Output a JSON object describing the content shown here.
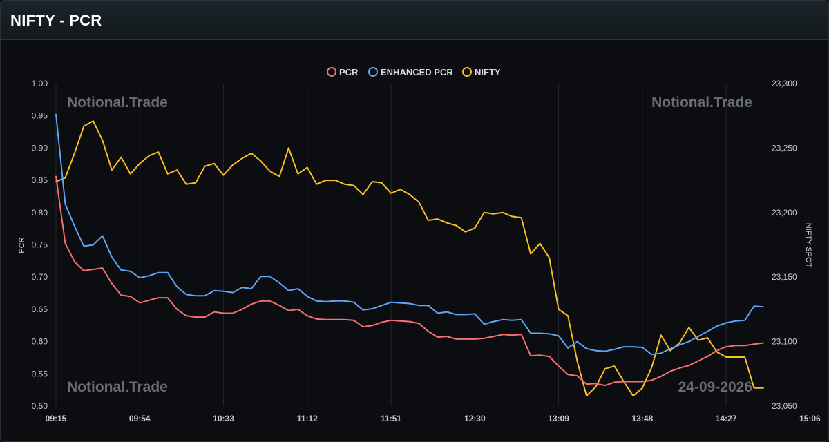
{
  "header": {
    "title": "NIFTY - PCR"
  },
  "watermarks": {
    "top_left": "Notional.Trade",
    "top_right": "Notional.Trade",
    "bottom_left": "Notional.Trade",
    "bottom_right": "24-09-2026"
  },
  "colors": {
    "pcr": "#f87171",
    "enhanced": "#60a5fa",
    "nifty": "#fbbf24"
  },
  "chart_data": {
    "type": "line",
    "legend_position": "top-center",
    "grid": "vertical",
    "ylabel_left": "PCR",
    "ylabel_right": "NIFTY SPOT",
    "y_left_lim": [
      0.5,
      1.0
    ],
    "y_right_lim": [
      23050,
      23300
    ],
    "y_left_ticks": [
      "1.00",
      "0.95",
      "0.90",
      "0.85",
      "0.80",
      "0.75",
      "0.70",
      "0.65",
      "0.60",
      "0.55",
      "0.50"
    ],
    "y_right_ticks": [
      "23,300",
      "23,250",
      "23,200",
      "23,150",
      "23,100",
      "23,050"
    ],
    "x_ticks": [
      "09:15",
      "09:54",
      "10:33",
      "11:12",
      "11:51",
      "12:30",
      "13:09",
      "13:48",
      "14:27",
      "15:06"
    ],
    "x_range": [
      0,
      76
    ],
    "series": [
      {
        "name": "PCR",
        "axis": "left",
        "values": [
          0.856,
          0.752,
          0.724,
          0.71,
          0.712,
          0.714,
          0.69,
          0.672,
          0.67,
          0.66,
          0.664,
          0.668,
          0.668,
          0.65,
          0.64,
          0.638,
          0.638,
          0.646,
          0.644,
          0.644,
          0.65,
          0.658,
          0.663,
          0.663,
          0.656,
          0.648,
          0.65,
          0.64,
          0.635,
          0.634,
          0.634,
          0.634,
          0.633,
          0.623,
          0.625,
          0.63,
          0.633,
          0.632,
          0.631,
          0.628,
          0.616,
          0.607,
          0.608,
          0.604,
          0.604,
          0.604,
          0.605,
          0.608,
          0.611,
          0.61,
          0.611,
          0.578,
          0.579,
          0.577,
          0.562,
          0.549,
          0.547,
          0.534,
          0.535,
          0.532,
          0.537,
          0.538,
          0.538,
          0.538,
          0.54,
          0.546,
          0.554,
          0.559,
          0.563,
          0.57,
          0.577,
          0.586,
          0.592,
          0.594,
          0.594,
          0.596,
          0.598
        ]
      },
      {
        "name": "ENHANCED PCR",
        "axis": "left",
        "values": [
          0.952,
          0.813,
          0.779,
          0.748,
          0.75,
          0.764,
          0.731,
          0.711,
          0.709,
          0.699,
          0.702,
          0.707,
          0.707,
          0.685,
          0.673,
          0.671,
          0.671,
          0.679,
          0.678,
          0.676,
          0.684,
          0.682,
          0.701,
          0.701,
          0.691,
          0.679,
          0.682,
          0.67,
          0.663,
          0.662,
          0.663,
          0.663,
          0.661,
          0.649,
          0.651,
          0.656,
          0.661,
          0.66,
          0.659,
          0.656,
          0.656,
          0.644,
          0.646,
          0.642,
          0.642,
          0.643,
          0.627,
          0.631,
          0.634,
          0.633,
          0.634,
          0.613,
          0.613,
          0.612,
          0.609,
          0.59,
          0.6,
          0.589,
          0.586,
          0.585,
          0.588,
          0.592,
          0.592,
          0.591,
          0.58,
          0.582,
          0.589,
          0.595,
          0.6,
          0.608,
          0.616,
          0.624,
          0.629,
          0.632,
          0.633,
          0.655,
          0.654
        ]
      },
      {
        "name": "NIFTY",
        "axis": "right",
        "values": [
          23224,
          23227,
          23246,
          23267,
          23271,
          23256,
          23233,
          23243,
          23230,
          23238,
          23244,
          23247,
          23230,
          23233,
          23222,
          23223,
          23236,
          23238,
          23229,
          23237,
          23242,
          23246,
          23240,
          23232,
          23228,
          23250,
          23230,
          23235,
          23222,
          23225,
          23225,
          23222,
          23221,
          23214,
          23224,
          23223,
          23215,
          23218,
          23214,
          23208,
          23194,
          23195,
          23192,
          23190,
          23185,
          23188,
          23200,
          23199,
          23200,
          23197,
          23196,
          23168,
          23176,
          23165,
          23125,
          23120,
          23085,
          23058,
          23065,
          23079,
          23081,
          23069,
          23058,
          23064,
          23080,
          23105,
          23093,
          23099,
          23111,
          23101,
          23103,
          23092,
          23088,
          23088,
          23088,
          23064,
          23064
        ]
      }
    ]
  }
}
